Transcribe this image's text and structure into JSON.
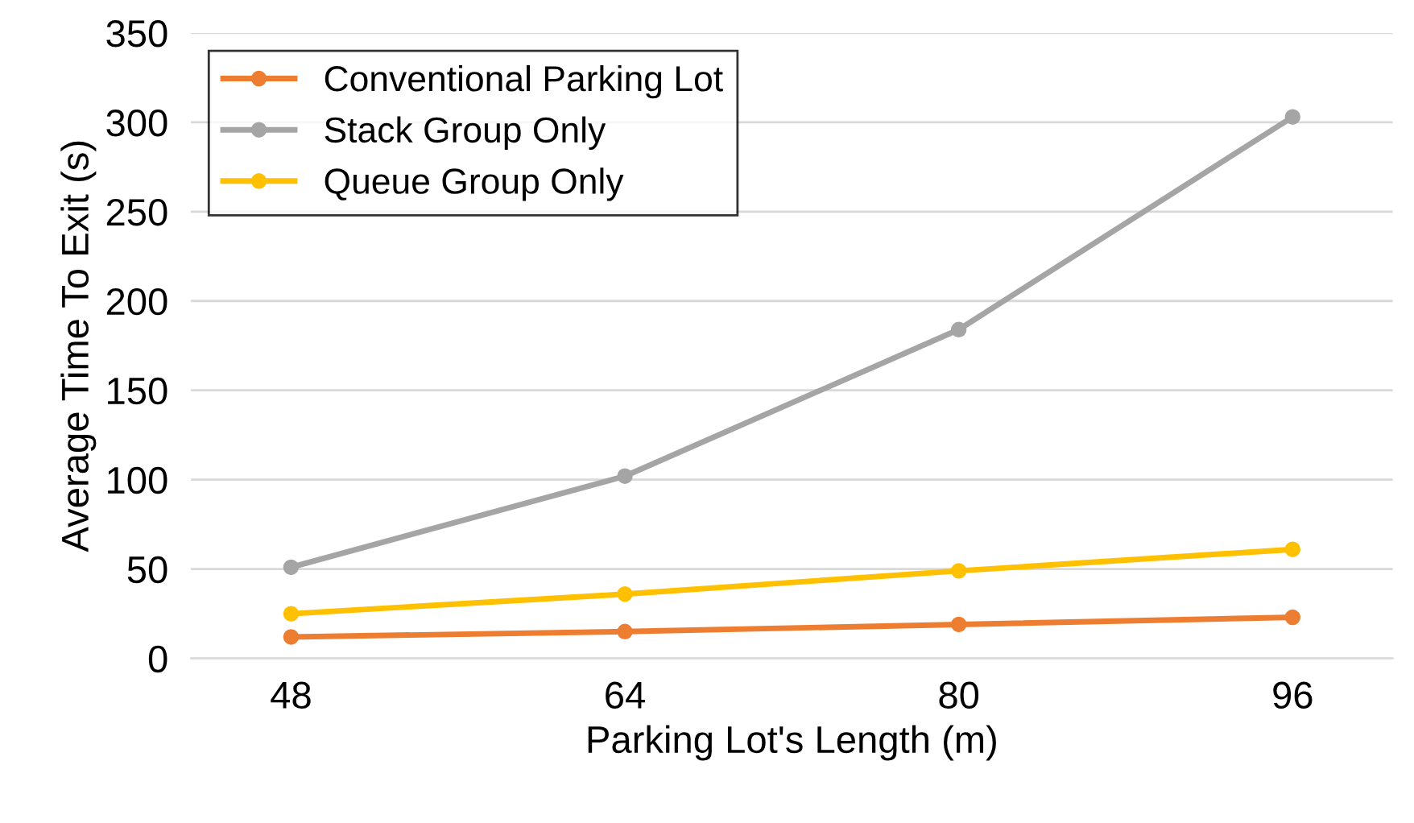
{
  "chart_data": {
    "type": "line",
    "xlabel": "Parking Lot's Length (m)",
    "ylabel": "Average Time To Exit (s)",
    "categories": [
      "48",
      "64",
      "80",
      "96"
    ],
    "series": [
      {
        "name": "Conventional Parking Lot",
        "color": "#ed7d31",
        "values": [
          12,
          15,
          19,
          23
        ]
      },
      {
        "name": "Stack Group Only",
        "color": "#a5a5a5",
        "values": [
          51,
          102,
          184,
          303
        ]
      },
      {
        "name": "Queue Group Only",
        "color": "#ffc000",
        "values": [
          25,
          36,
          49,
          61
        ]
      }
    ],
    "ylim": [
      0,
      350
    ],
    "yticks": [
      0,
      50,
      100,
      150,
      200,
      250,
      300,
      350
    ],
    "grid": "y",
    "legend": "top left",
    "marker": "circle",
    "line_style": "solid"
  }
}
